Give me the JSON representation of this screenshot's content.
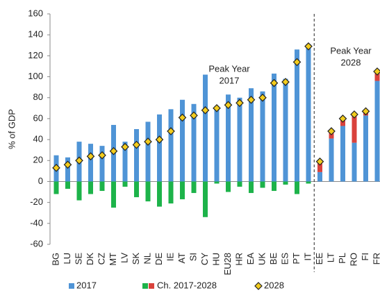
{
  "chart_data": {
    "type": "bar",
    "y_label": "% of GDP",
    "annotations": [
      "Peak Year",
      "2017",
      "Peak Year",
      "2028"
    ],
    "categories": [
      "BG",
      "LU",
      "SE",
      "DK",
      "CZ",
      "MT",
      "LV",
      "SK",
      "NL",
      "DE",
      "IE",
      "AT",
      "SI",
      "CY",
      "HU",
      "EU28",
      "HR",
      "EA",
      "UK",
      "BE",
      "ES",
      "PT",
      "IT",
      "EE",
      "LT",
      "PL",
      "RO",
      "FI",
      "FR"
    ],
    "series": [
      {
        "name": "2017",
        "color": "#4f94d6",
        "values": [
          25,
          23,
          38,
          36,
          34,
          54,
          38,
          50,
          57,
          64,
          69,
          78,
          74,
          102,
          72,
          83,
          80,
          89,
          86,
          103,
          98,
          126,
          131,
          9,
          41,
          53,
          37,
          63,
          96
        ]
      },
      {
        "name": "Ch. 2017-2028",
        "color": "#d9423c",
        "negative_color": "#1db34a",
        "values": [
          -12,
          -7,
          -18,
          -12,
          -9,
          -25,
          -5,
          -15,
          -19,
          -24,
          -21,
          -17,
          -11,
          -34,
          -2,
          -10,
          -5,
          -11,
          -6,
          -9,
          -3,
          -12,
          -2,
          10,
          7,
          7,
          27,
          4,
          9
        ]
      },
      {
        "name": "2028",
        "color": "#f2cc1d",
        "values": [
          13,
          16,
          20,
          24,
          25,
          29,
          33,
          35,
          38,
          40,
          48,
          61,
          63,
          68,
          70,
          73,
          75,
          78,
          80,
          94,
          95,
          114,
          129,
          19,
          48,
          60,
          64,
          67,
          105
        ]
      }
    ],
    "ylim": [
      -60,
      160
    ],
    "yticks": [
      -60,
      -40,
      -20,
      0,
      20,
      40,
      60,
      80,
      100,
      120,
      140,
      160
    ]
  }
}
